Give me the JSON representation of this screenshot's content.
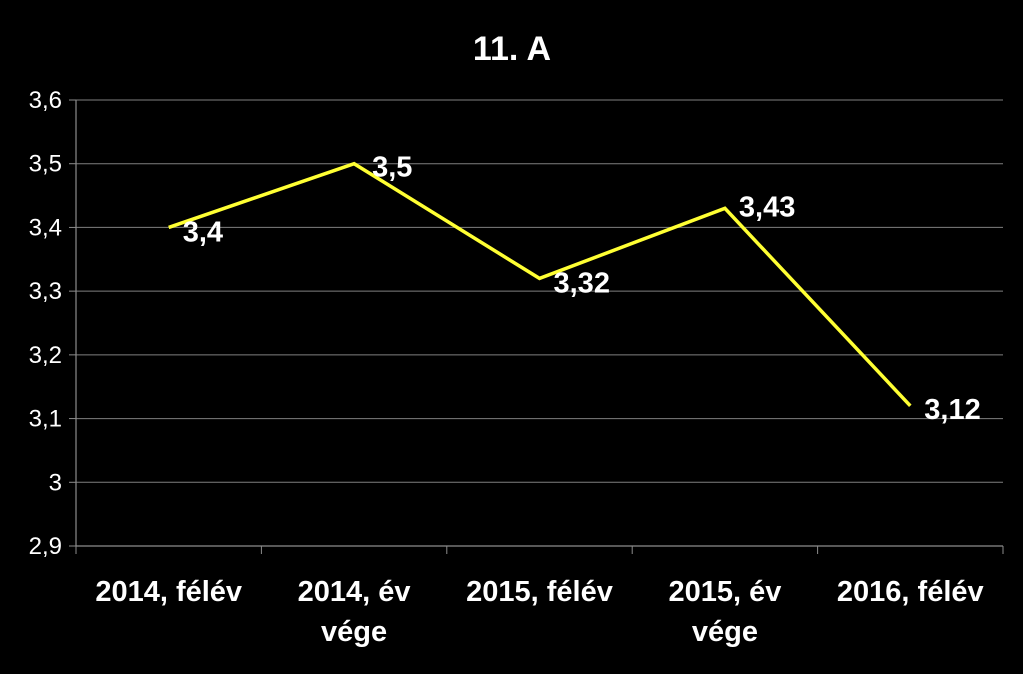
{
  "chart_data": {
    "type": "line",
    "title": "11. A",
    "xlabel": "",
    "ylabel": "",
    "categories": [
      [
        "2014, félév"
      ],
      [
        "2014, év",
        "vége"
      ],
      [
        "2015, félév"
      ],
      [
        "2015, év",
        "vége"
      ],
      [
        "2016, félév"
      ]
    ],
    "series": [
      {
        "values": [
          3.4,
          3.5,
          3.32,
          3.43,
          3.12
        ],
        "labels": [
          "3,4",
          "3,5",
          "3,32",
          "3,43",
          "3,12"
        ],
        "color": "#ffff33"
      }
    ],
    "ylim": [
      2.9,
      3.6
    ],
    "yticks": [
      2.9,
      3.0,
      3.1,
      3.2,
      3.3,
      3.4,
      3.5,
      3.6
    ],
    "ytick_labels": [
      "2,9",
      "3",
      "3,1",
      "3,2",
      "3,3",
      "3,4",
      "3,5",
      "3,6"
    ],
    "grid": true,
    "legend": "none",
    "colors": {
      "background": "#000000",
      "text": "#ffffff",
      "grid": "#7f7f7f",
      "axis": "#8c8c8c"
    }
  }
}
